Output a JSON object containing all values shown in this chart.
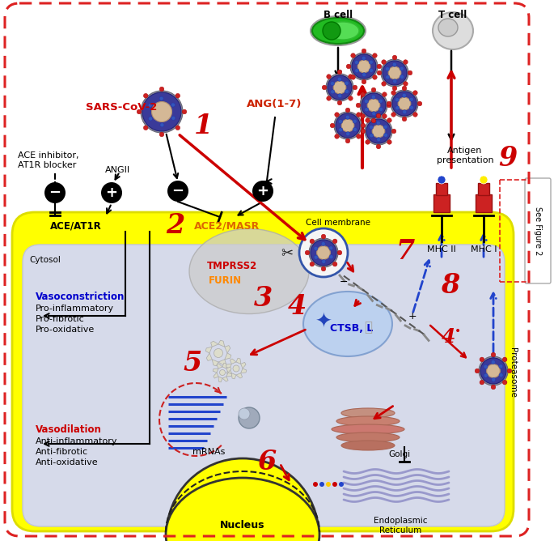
{
  "bg_color": "#ffffff",
  "outer_border_color": "#dd2222",
  "cell_membrane_color": "#ffff00",
  "cytosol_bg": "#d8dcea",
  "nucleus_color": "#ffff00",
  "see_fig2_text": "See Figure 2",
  "bcell_label": "B cell",
  "tcell_label": "T cell",
  "sars_label": "SARS-CoV-2",
  "ang_label": "ANG(1-7)",
  "ace_atir_label": "ACE/AT1R",
  "ace2_masr_label": "ACE2/MASR",
  "cell_membrane_label": "Cell membrane",
  "cytosol_label": "Cytosol",
  "tmprss2_label": "TMPRSS2",
  "furin_label": "FURIN",
  "ctsb_label": "CTSB, L",
  "mrna_label": "mRNAs",
  "vasoconstriction_label": "Vasoconstriction",
  "pro_inflammatory": "Pro-inflammatory",
  "pro_fibrotic": "Pro-fibrotic",
  "pro_oxidative": "Pro-oxidative",
  "vasodilation_label": "Vasodilation",
  "anti_inflammatory": "Anti-inflammatory",
  "anti_fibrotic": "Anti-fibrotic",
  "anti_oxidative": "Anti-oxidative",
  "ace_inhibitor_label1": "ACE inhibitor,",
  "ace_inhibitor_label2": "AT1R blocker",
  "angii_label": "ANGII",
  "antigen_pres_label": "Antigen\npresentation",
  "mhc2_label": "MHC II",
  "mhc1_label": "MHC I",
  "golgi_label": "Golgi",
  "er_label": "Endoplasmic\nReticulum",
  "nucleus_label": "Nucleus",
  "proteasome_label": "Proteasome",
  "n1": "1",
  "n2": "2",
  "n3": "3",
  "n4": "4",
  "n4s": "4",
  "n4dot": "•",
  "n5": "5",
  "n6": "6",
  "n7": "7",
  "n8": "8",
  "n9": "9"
}
